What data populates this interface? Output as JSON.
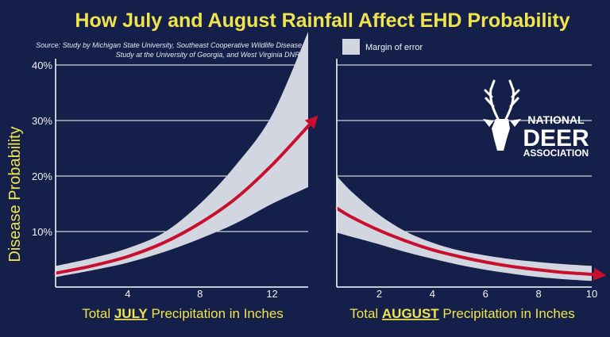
{
  "title": "How July and August Rainfall Affect EHD Probability",
  "source_line1": "Source: Study by Michigan State University, Southeast Cooperative Wildlife Disease",
  "source_line2": "Study at the University of Georgia, and West Virginia DNR.",
  "legend": {
    "label": "Margin of error"
  },
  "logo": {
    "line1": "NATIONAL",
    "line2": "DEER",
    "line3": "ASSOCIATION"
  },
  "colors": {
    "background": "#14204a",
    "band": "#d2d6e0",
    "curve": "#c8102e",
    "title": "#f0e44c",
    "grid": "#ffffff"
  },
  "chart_data": [
    {
      "type": "area",
      "ylabel": "Disease Probability",
      "xlabel_prefix": "Total ",
      "xlabel_emphasis": "JULY",
      "xlabel_suffix": " Precipitation in Inches",
      "xlim": [
        0,
        14
      ],
      "ylim": [
        0,
        40
      ],
      "xticks": [
        4,
        8,
        12
      ],
      "yticks": [
        10,
        20,
        30,
        40
      ],
      "ytick_labels": [
        "10%",
        "20%",
        "30%",
        "40%"
      ],
      "grid": true,
      "series": [
        {
          "role": "estimate",
          "x": [
            0,
            2,
            4,
            6,
            8,
            10,
            12,
            14
          ],
          "y": [
            2.5,
            3.8,
            5.5,
            8.0,
            11.5,
            16.0,
            22.0,
            29.0
          ]
        },
        {
          "role": "margin-upper",
          "x": [
            0,
            2,
            4,
            6,
            8,
            10,
            12,
            14
          ],
          "y": [
            3.8,
            5.2,
            7.0,
            9.8,
            15.0,
            22.0,
            31.0,
            46.0
          ]
        },
        {
          "role": "margin-lower",
          "x": [
            0,
            2,
            4,
            6,
            8,
            10,
            12,
            14
          ],
          "y": [
            1.8,
            3.0,
            4.4,
            6.3,
            8.7,
            11.5,
            15.0,
            18.0
          ]
        }
      ]
    },
    {
      "type": "area",
      "xlabel_prefix": "Total ",
      "xlabel_emphasis": "AUGUST",
      "xlabel_suffix": " Precipitation in Inches",
      "xlim": [
        0.4,
        10
      ],
      "ylim": [
        0,
        40
      ],
      "xticks": [
        2,
        4,
        6,
        8,
        10
      ],
      "grid": true,
      "series": [
        {
          "role": "estimate",
          "x": [
            0.4,
            1,
            2,
            3,
            4,
            5,
            6,
            7,
            8,
            9,
            10
          ],
          "y": [
            14.2,
            12.5,
            10.2,
            8.3,
            6.7,
            5.5,
            4.5,
            3.7,
            3.1,
            2.6,
            2.3
          ]
        },
        {
          "role": "margin-upper",
          "x": [
            0.4,
            1,
            2,
            3,
            4,
            5,
            6,
            7,
            8,
            9,
            10
          ],
          "y": [
            20.0,
            17.0,
            13.0,
            10.0,
            8.0,
            6.6,
            5.7,
            5.0,
            4.5,
            4.1,
            3.8
          ]
        },
        {
          "role": "margin-lower",
          "x": [
            0.4,
            1,
            2,
            3,
            4,
            5,
            6,
            7,
            8,
            9,
            10
          ],
          "y": [
            9.8,
            9.0,
            7.7,
            6.3,
            5.1,
            4.0,
            3.1,
            2.4,
            1.8,
            1.4,
            1.1
          ]
        }
      ]
    }
  ]
}
